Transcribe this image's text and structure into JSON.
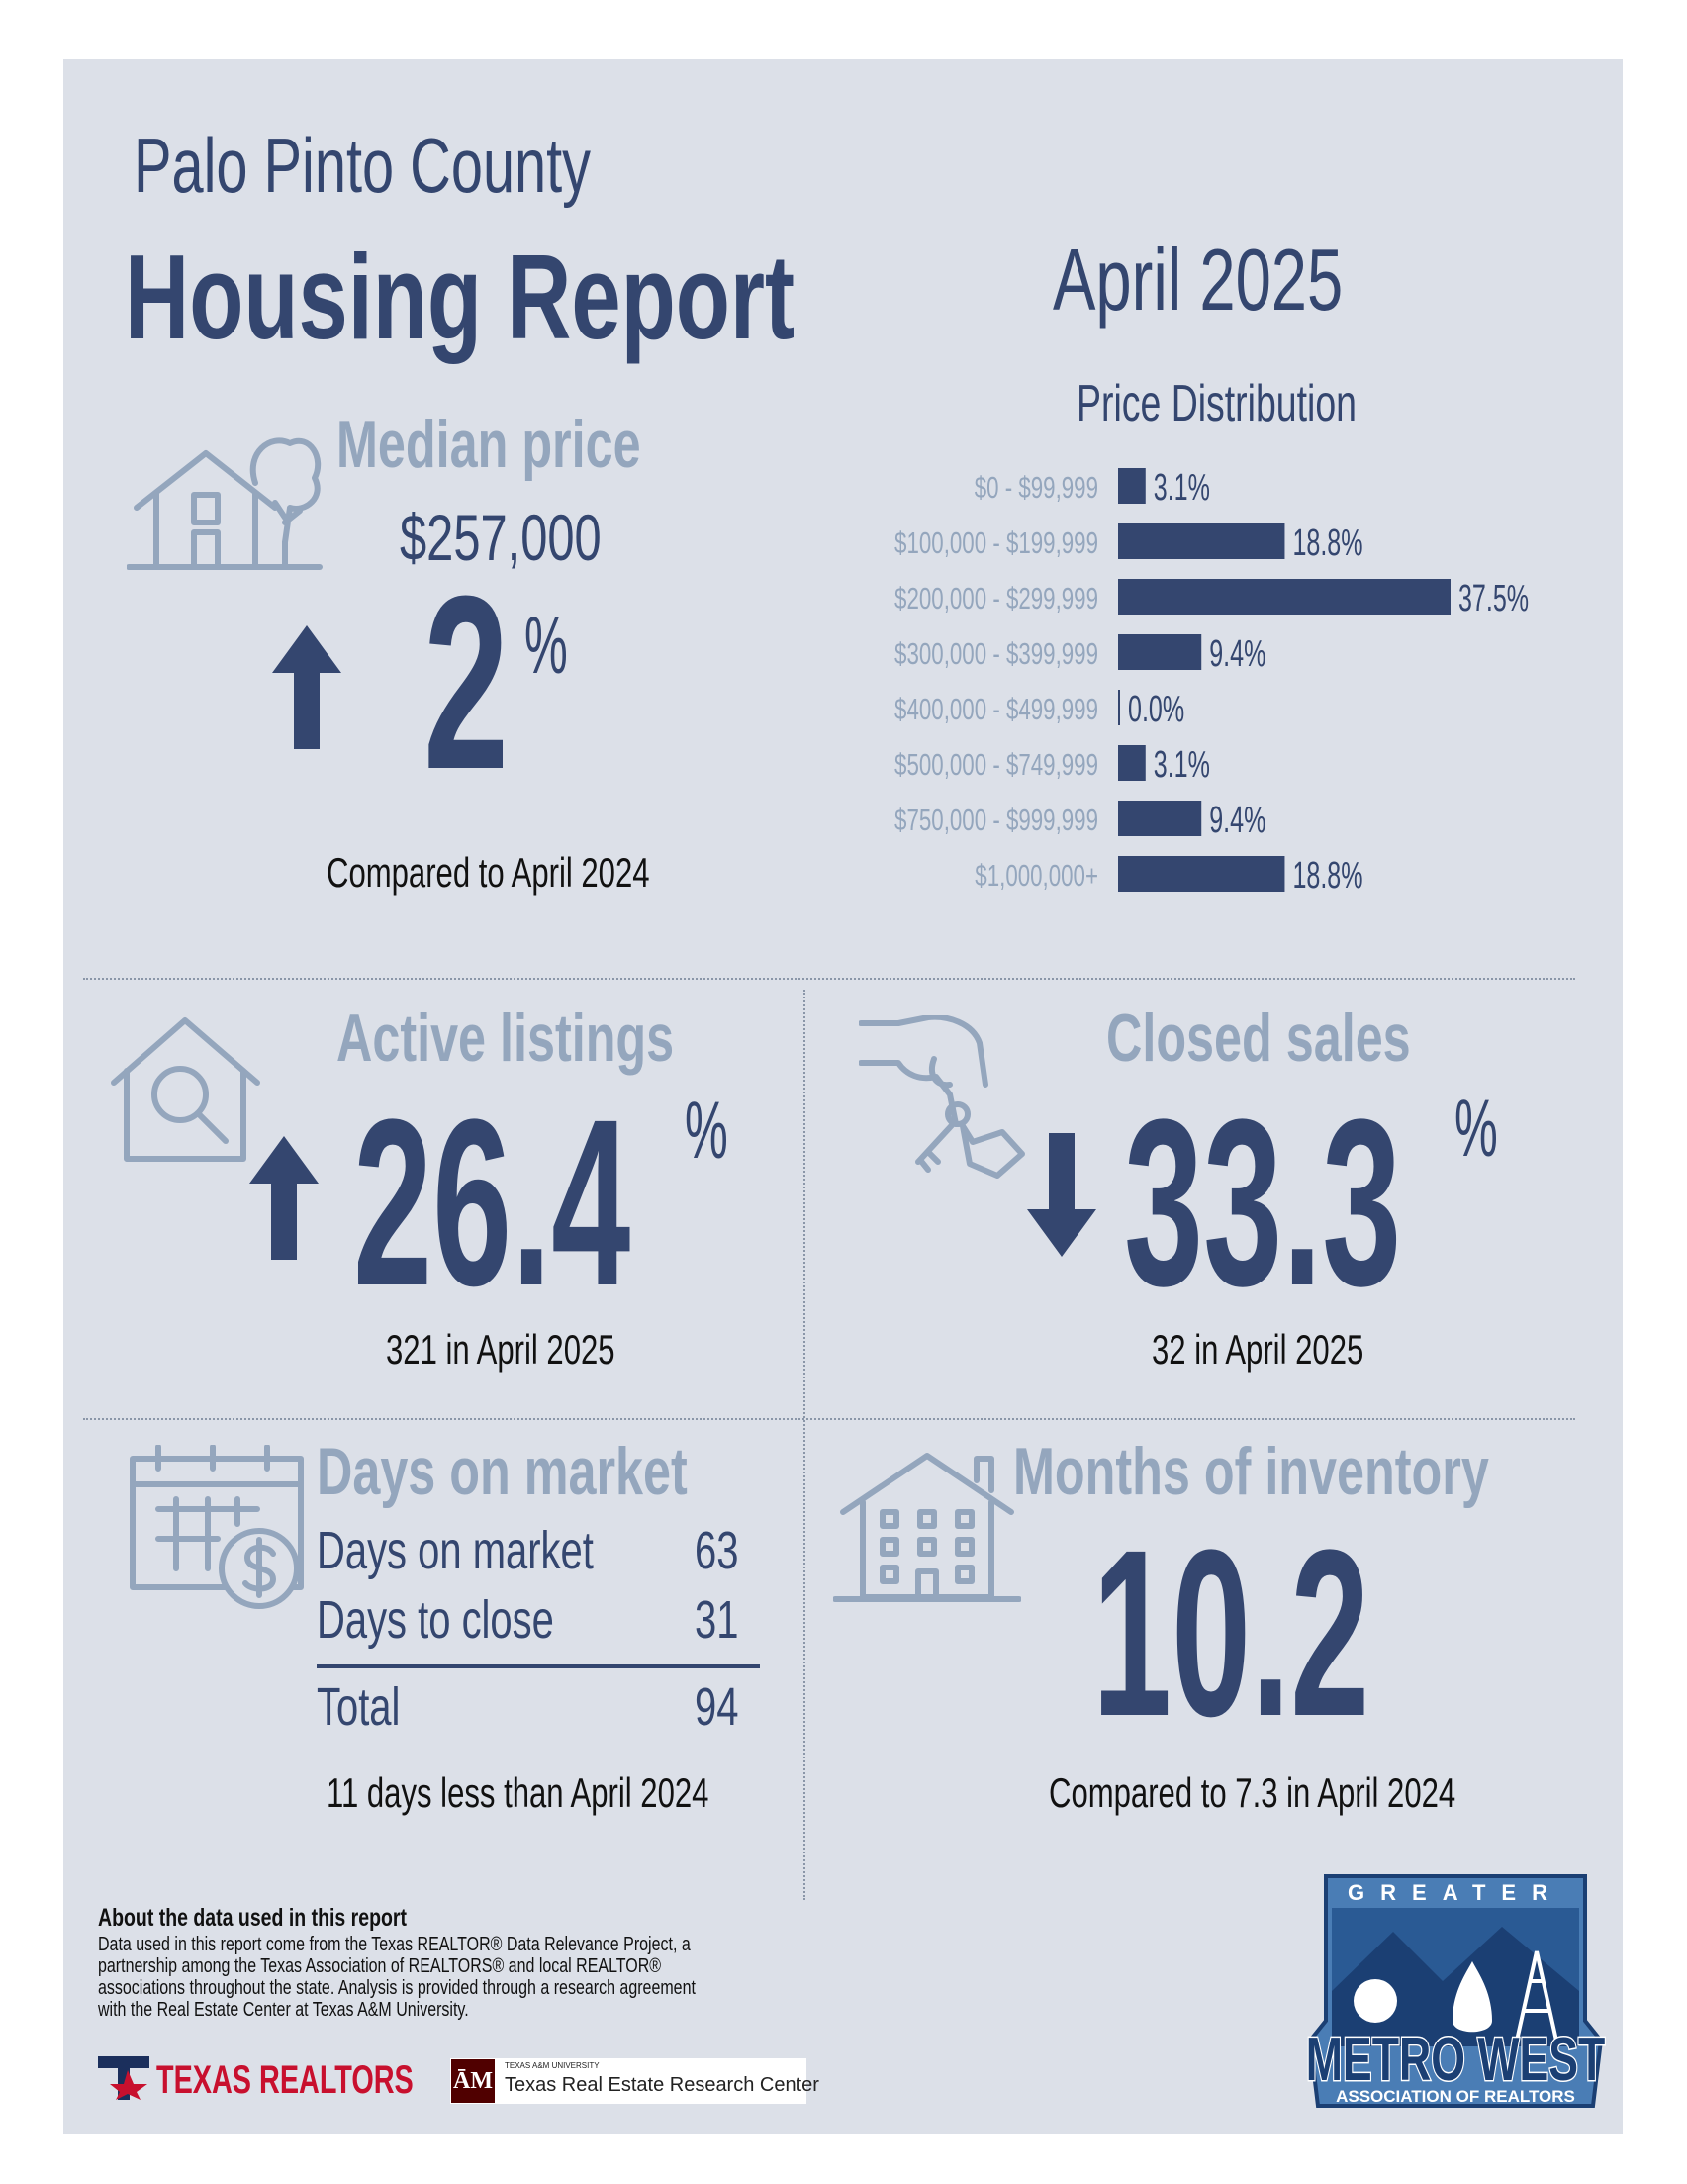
{
  "header": {
    "county": "Palo Pinto County",
    "title": "Housing Report",
    "date": "April 2025"
  },
  "median_price": {
    "label": "Median price",
    "value": "$257,000",
    "direction": "up",
    "change": "2",
    "unit": "%",
    "note": "Compared to April 2024"
  },
  "price_distribution": {
    "title": "Price Distribution",
    "chart_data": {
      "type": "bar",
      "title": "Price Distribution",
      "categories": [
        "$0 - $99,999",
        "$100,000 - $199,999",
        "$200,000 - $299,999",
        "$300,000 - $399,999",
        "$400,000 - $499,999",
        "$500,000 - $749,999",
        "$750,000 - $999,999",
        "$1,000,000+"
      ],
      "values": [
        3.1,
        18.8,
        37.5,
        9.4,
        0.0,
        3.1,
        9.4,
        18.8
      ],
      "value_labels": [
        "3.1%",
        "18.8%",
        "37.5%",
        "9.4%",
        "0.0%",
        "3.1%",
        "9.4%",
        "18.8%"
      ],
      "orientation": "horizontal",
      "bar_color": "#34466f"
    }
  },
  "active_listings": {
    "label": "Active listings",
    "direction": "up",
    "change": "26.4",
    "unit": "%",
    "note": "321 in April 2025"
  },
  "closed_sales": {
    "label": "Closed sales",
    "direction": "down",
    "change": "33.3",
    "unit": "%",
    "note": "32 in April 2025"
  },
  "days_on_market": {
    "label": "Days on market",
    "rows": [
      {
        "label": "Days on market",
        "value": "63"
      },
      {
        "label": "Days to close",
        "value": "31"
      }
    ],
    "total": {
      "label": "Total",
      "value": "94"
    },
    "note": "11 days less than April 2024"
  },
  "months_inventory": {
    "label": "Months of inventory",
    "value": "10.2",
    "note": "Compared to 7.3 in April 2024"
  },
  "about": {
    "title": "About the data used in this report",
    "body": "Data used in this report come from the Texas REALTOR® Data Relevance Project, a partnership among the Texas Association of REALTORS® and local REALTOR® associations throughout the state. Analysis is provided through a research agreement with the Real Estate Center at Texas A&M University."
  },
  "logos": {
    "texas_realtors": "TEXAS REALTORS",
    "tamu_small": "TEXAS A&M UNIVERSITY",
    "tamu_center": "Texas Real Estate Research Center",
    "metro_top": "GREATER",
    "metro_name": "METRO WEST",
    "metro_sub": "ASSOCIATION OF REALTORS"
  },
  "colors": {
    "navy": "#34466f",
    "gray_blue": "#94a6bd",
    "background": "#dce0e8"
  }
}
